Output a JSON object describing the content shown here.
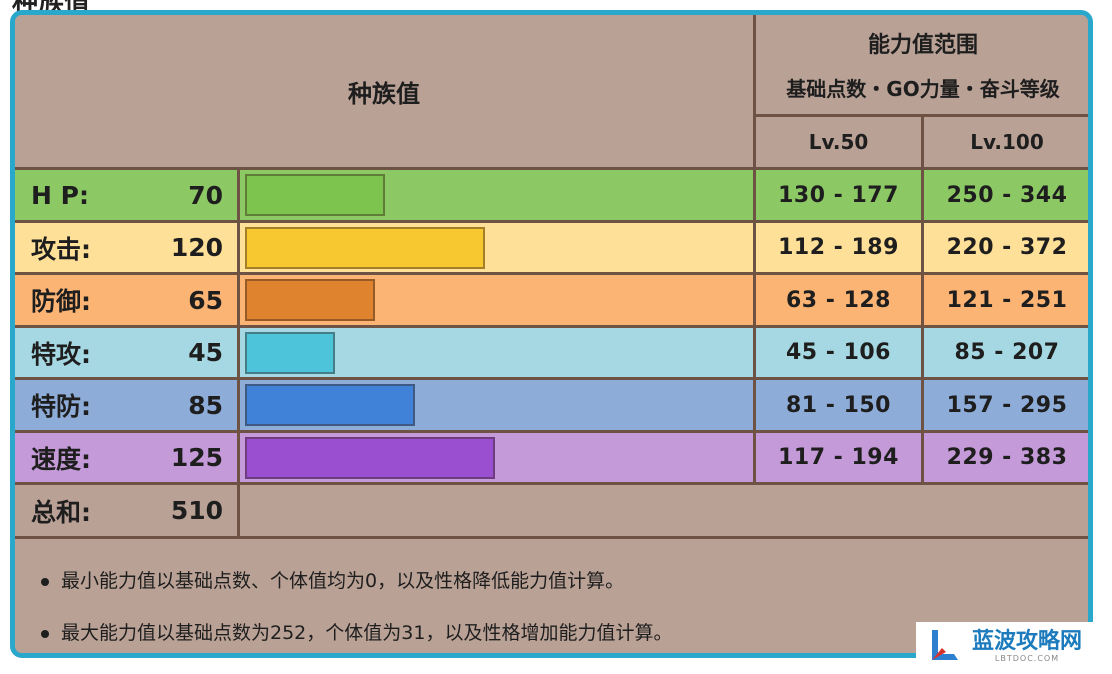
{
  "page_title_fragment": "种族值",
  "header": {
    "base_stats_title": "种族值",
    "range_title": "能力值范围",
    "range_subtitle": "基础点数・GO力量・奋斗等级",
    "lv50": "Lv.50",
    "lv100": "Lv.100"
  },
  "stats": [
    {
      "label": "H P:",
      "value": "70",
      "bar_fraction": 0.28,
      "color": "#8cc864",
      "bar_color": "#7cc44e",
      "lv50": "130 - 177",
      "lv100": "250 - 344"
    },
    {
      "label": "攻击:",
      "value": "120",
      "bar_fraction": 0.48,
      "color": "#ffe098",
      "bar_color": "#f8c830",
      "lv50": "112 - 189",
      "lv100": "220 - 372"
    },
    {
      "label": "防御:",
      "value": "65",
      "bar_fraction": 0.26,
      "color": "#fbb474",
      "bar_color": "#e0832e",
      "lv50": "63 - 128",
      "lv100": "121 - 251"
    },
    {
      "label": "特攻:",
      "value": "45",
      "bar_fraction": 0.18,
      "color": "#a5d8e2",
      "bar_color": "#4ec4da",
      "lv50": "45 - 106",
      "lv100": "85 - 207"
    },
    {
      "label": "特防:",
      "value": "85",
      "bar_fraction": 0.34,
      "color": "#8eacd8",
      "bar_color": "#3f82d8",
      "lv50": "81 - 150",
      "lv100": "157 - 295"
    },
    {
      "label": "速度:",
      "value": "125",
      "bar_fraction": 0.5,
      "color": "#c59ad8",
      "bar_color": "#9a4ed0",
      "lv50": "117 - 194",
      "lv100": "229 - 383"
    }
  ],
  "total": {
    "label": "总和:",
    "value": "510"
  },
  "notes": [
    "最小能力值以基础点数、个体值均为0，以及性格降低能力值计算。",
    "最大能力值以基础点数为252，个体值为31，以及性格增加能力值计算。"
  ],
  "watermark": {
    "title": "蓝波攻略网",
    "subtitle": "LBTDOC.COM"
  }
}
